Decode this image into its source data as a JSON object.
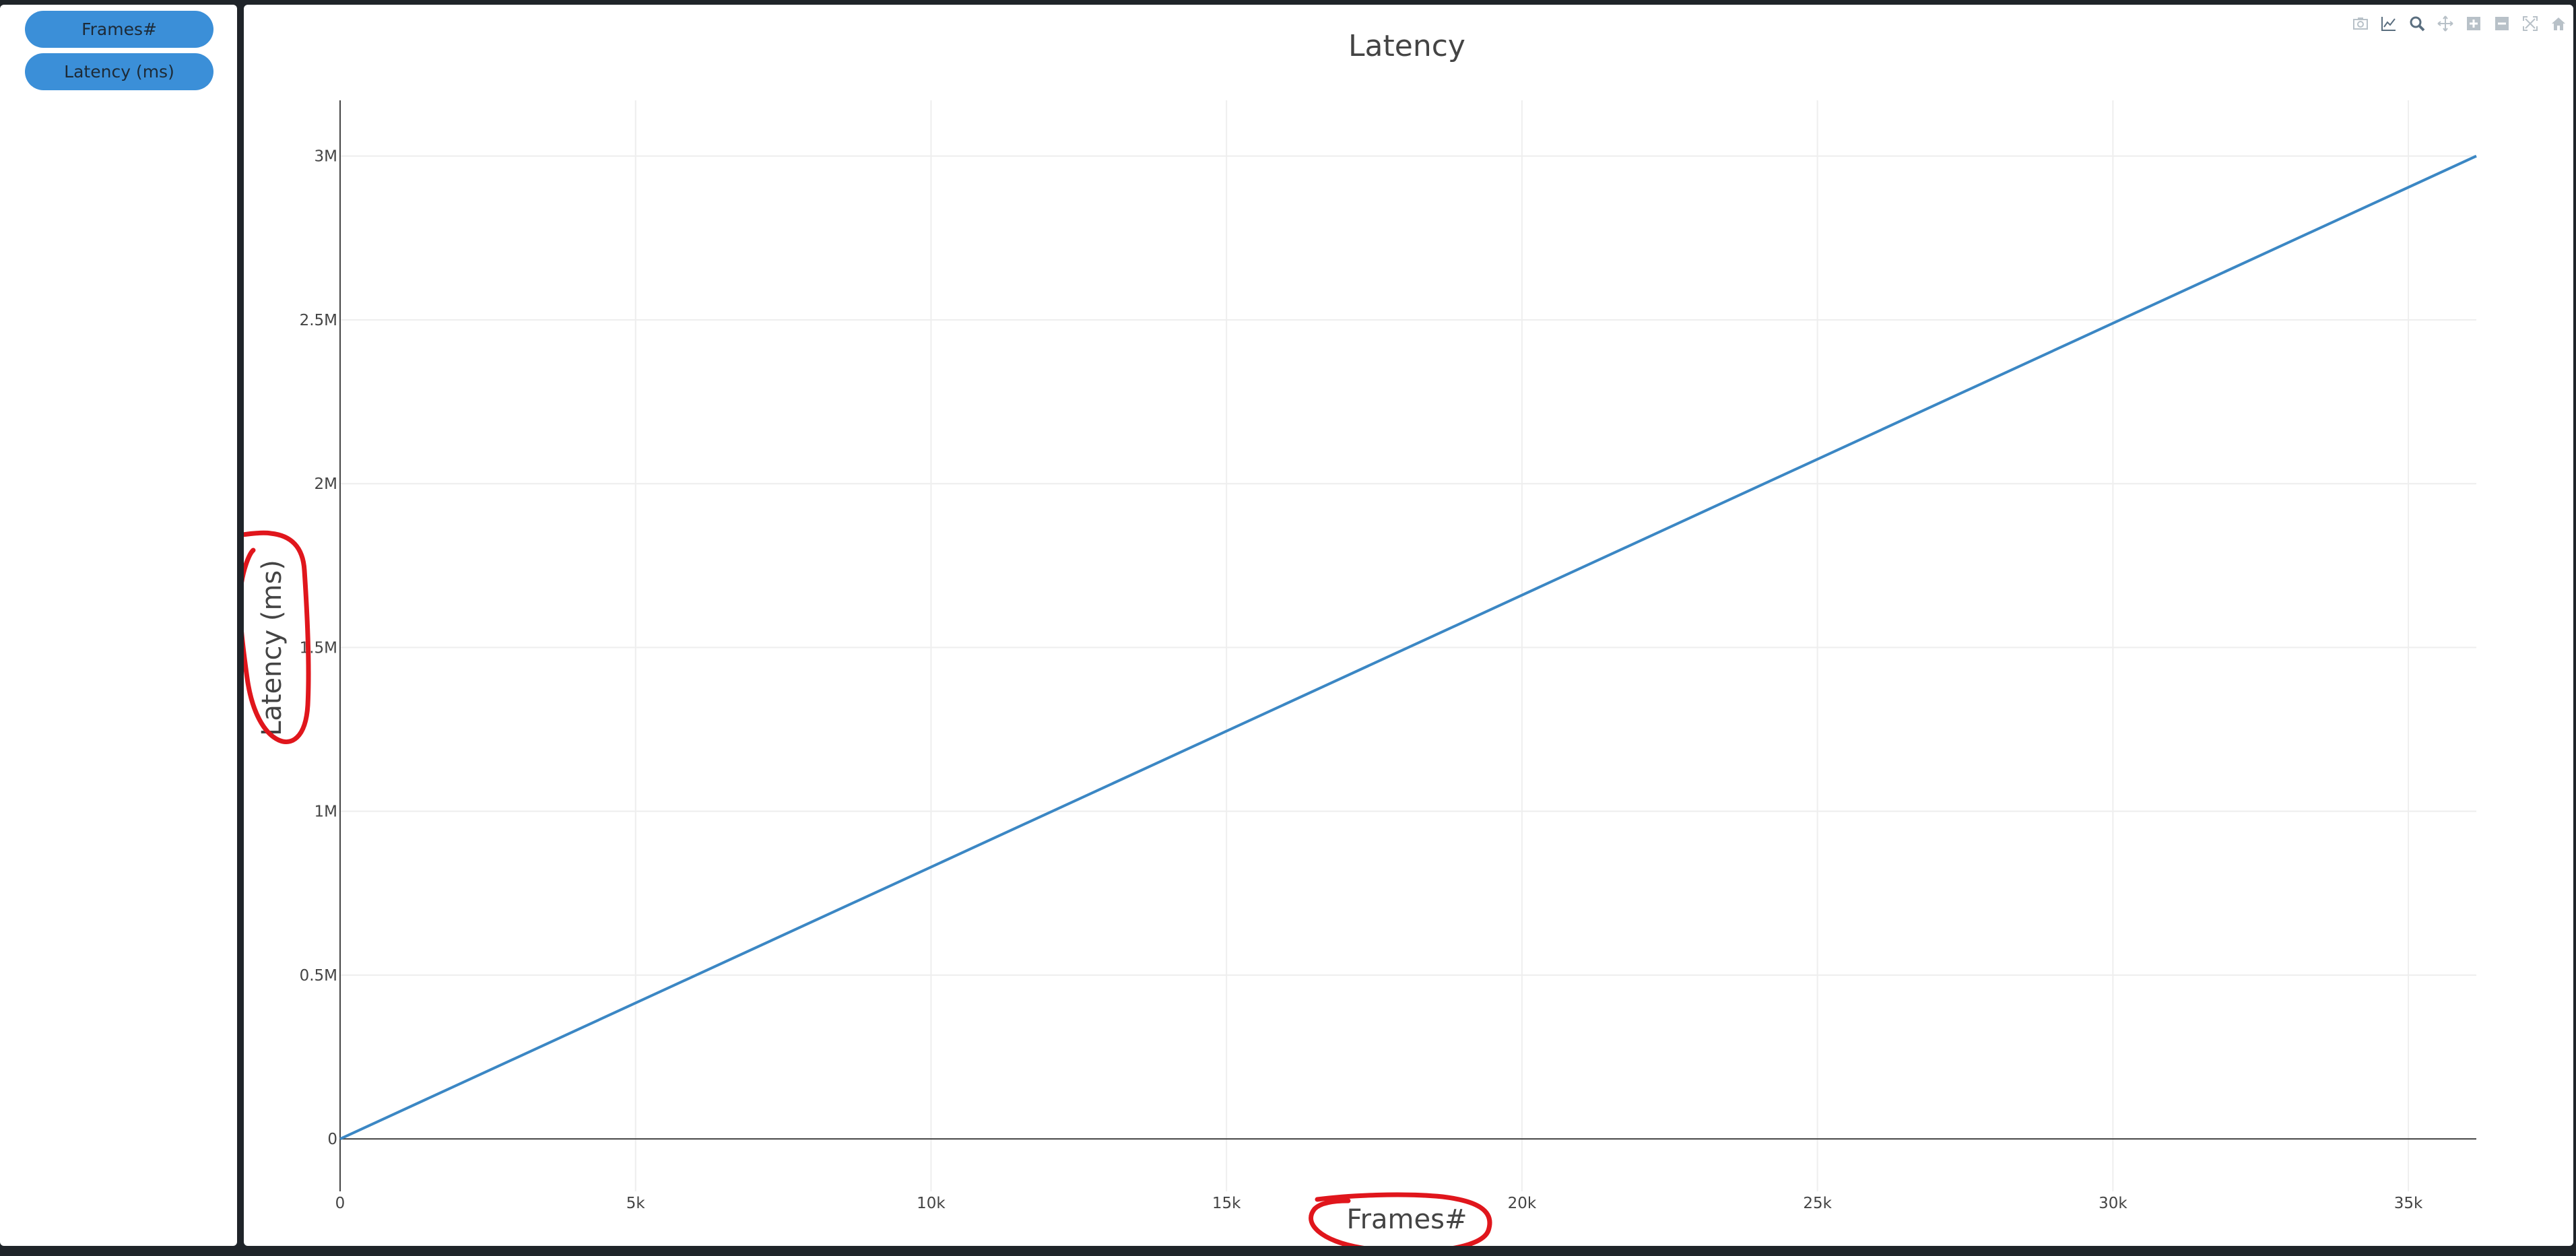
{
  "sidebar": {
    "buttons": [
      {
        "label": "Frames#"
      },
      {
        "label": "Latency (ms)"
      }
    ]
  },
  "modebar": {
    "icons": [
      "camera-icon",
      "line-chart-icon",
      "zoom-icon",
      "pan-icon",
      "zoom-in-icon",
      "zoom-out-icon",
      "autoscale-icon",
      "home-icon"
    ]
  },
  "colors": {
    "line": "#3b87c4",
    "button": "#3b8fd8",
    "annotation": "#e0161c",
    "background": "#1f2429"
  },
  "chart_data": {
    "type": "line",
    "title": "Latency",
    "xlabel": "Frames#",
    "ylabel": "Latency (ms)",
    "xlim": [
      0,
      36150
    ],
    "ylim": [
      -160000,
      3170000
    ],
    "xticks": [
      {
        "value": 0,
        "label": "0"
      },
      {
        "value": 5000,
        "label": "5k"
      },
      {
        "value": 10000,
        "label": "10k"
      },
      {
        "value": 15000,
        "label": "15k"
      },
      {
        "value": 20000,
        "label": "20k"
      },
      {
        "value": 25000,
        "label": "25k"
      },
      {
        "value": 30000,
        "label": "30k"
      },
      {
        "value": 35000,
        "label": "35k"
      }
    ],
    "yticks": [
      {
        "value": 0,
        "label": "0"
      },
      {
        "value": 500000,
        "label": "0.5M"
      },
      {
        "value": 1000000,
        "label": "1M"
      },
      {
        "value": 1500000,
        "label": "1.5M"
      },
      {
        "value": 2000000,
        "label": "2M"
      },
      {
        "value": 2500000,
        "label": "2.5M"
      },
      {
        "value": 3000000,
        "label": "3M"
      }
    ],
    "grid": true,
    "series": [
      {
        "x": [
          0,
          36150
        ],
        "y": [
          0,
          3000000
        ]
      }
    ]
  }
}
